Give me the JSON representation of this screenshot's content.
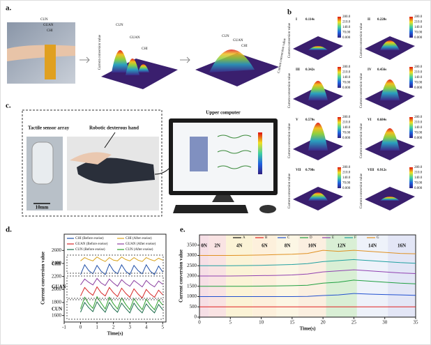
{
  "panels": {
    "a": "a.",
    "b": "b",
    "c": "c.",
    "d": "d.",
    "e": "e."
  },
  "panel_a": {
    "photo_labels": [
      "CUN",
      "GUAN",
      "CHI"
    ],
    "surface_labels": [
      "CUN",
      "GUAN",
      "CHI"
    ],
    "surface2_labels": [
      "CUN",
      "GUAN",
      "CHI"
    ],
    "axis_label": "Current conversion value"
  },
  "panel_b": {
    "frames": [
      {
        "index": "I",
        "time": "0.114s"
      },
      {
        "index": "II",
        "time": "0.228s"
      },
      {
        "index": "III",
        "time": "0.342s"
      },
      {
        "index": "IV",
        "time": "0.456s"
      },
      {
        "index": "V",
        "time": "0.570s"
      },
      {
        "index": "VI",
        "time": "0.684s"
      },
      {
        "index": "VII",
        "time": "0.798s"
      },
      {
        "index": "VIII",
        "time": "0.912s"
      }
    ],
    "colorbar_ticks": [
      "280.0",
      "210.0",
      "140.0",
      "70.00",
      "0.000"
    ],
    "axis_label": "Current conversion value"
  },
  "panel_c": {
    "sensor": "Tactile sensor array",
    "hand": "Robotic dexterous hand",
    "scale": "10mm",
    "computer": "Upper computer"
  },
  "chart_data": [
    {
      "type": "line",
      "xlabel": "Time(s)",
      "ylabel": "Current conversion value",
      "group_labels": [
        "CHI",
        "GUAN",
        "CUN"
      ],
      "x": [
        0,
        0.25,
        0.5,
        0.75,
        1,
        1.25,
        1.5,
        1.75,
        2,
        2.25,
        2.5,
        2.75,
        3,
        3.25,
        3.5,
        3.75,
        4,
        4.25,
        4.5,
        4.75,
        5
      ],
      "xlim": [
        -1,
        5.2
      ],
      "xticks": [
        -1,
        0,
        1,
        2,
        3,
        4,
        5
      ],
      "ylim": [
        1500,
        2850
      ],
      "yticks": [
        1600,
        1800,
        2000,
        2200,
        2400,
        2600
      ],
      "series": [
        {
          "name": "CHI (Before exeise)",
          "color": "#1f4fa8",
          "values": [
            2230,
            2380,
            2290,
            2240,
            2370,
            2280,
            2230,
            2390,
            2290,
            2240,
            2380,
            2280,
            2230,
            2370,
            2290,
            2240,
            2380,
            2280,
            2230,
            2360,
            2270
          ]
        },
        {
          "name": "CHI (After exeise)",
          "color": "#d9a21b",
          "values": [
            2440,
            2490,
            2460,
            2440,
            2500,
            2460,
            2430,
            2490,
            2450,
            2440,
            2500,
            2460,
            2440,
            2490,
            2450,
            2430,
            2490,
            2460,
            2440,
            2480,
            2450
          ]
        },
        {
          "name": "GUAN (Before exeise)",
          "color": "#d62728",
          "values": [
            1900,
            2030,
            1960,
            1910,
            2040,
            1950,
            1900,
            2030,
            1950,
            1890,
            2020,
            1940,
            1880,
            2010,
            1930,
            1870,
            2000,
            1930,
            1880,
            1990,
            1920
          ]
        },
        {
          "name": "GUAN (After exeise)",
          "color": "#8b3fa0",
          "values": [
            2070,
            2160,
            2110,
            2070,
            2170,
            2100,
            2060,
            2160,
            2100,
            2050,
            2150,
            2090,
            2050,
            2140,
            2090,
            2040,
            2140,
            2080,
            2040,
            2130,
            2080
          ]
        },
        {
          "name": "CUN (Before exeise)",
          "color": "#1b6b4a",
          "values": [
            1650,
            1800,
            1720,
            1660,
            1810,
            1720,
            1650,
            1800,
            1710,
            1650,
            1790,
            1710,
            1640,
            1790,
            1700,
            1640,
            1780,
            1700,
            1640,
            1770,
            1690
          ]
        },
        {
          "name": "CUN (After exeise)",
          "color": "#2ca02c",
          "values": [
            1700,
            1880,
            1780,
            1710,
            1890,
            1790,
            1700,
            1880,
            1780,
            1700,
            1870,
            1770,
            1690,
            1860,
            1770,
            1690,
            1850,
            1760,
            1690,
            1840,
            1760
          ]
        }
      ]
    },
    {
      "type": "line",
      "xlabel": "Time(s)",
      "ylabel": "Current conversion value",
      "x": [
        0,
        2.5,
        5,
        7.5,
        10,
        12.5,
        15,
        17.5,
        20,
        22.5,
        25,
        27.5,
        30,
        32.5,
        35
      ],
      "xlim": [
        0,
        35
      ],
      "xticks": [
        0,
        5,
        10,
        15,
        20,
        25,
        30,
        35
      ],
      "ylim": [
        0,
        4000
      ],
      "yticks": [
        0,
        500,
        1000,
        1500,
        2000,
        2500,
        3000,
        3500
      ],
      "bands": [
        {
          "label": "0N",
          "start": 0,
          "end": 1.5,
          "color": "#f6dfe6"
        },
        {
          "label": "2N",
          "start": 1.5,
          "end": 4.3,
          "color": "#f9e3e3"
        },
        {
          "label": "4N",
          "start": 4.3,
          "end": 8.6,
          "color": "#fbf3d6"
        },
        {
          "label": "6N",
          "start": 8.6,
          "end": 12.5,
          "color": "#fdf0dc"
        },
        {
          "label": "8N",
          "start": 12.5,
          "end": 16,
          "color": "#fcf6e4"
        },
        {
          "label": "10N",
          "start": 16,
          "end": 20.5,
          "color": "#fbefe0"
        },
        {
          "label": "12N",
          "start": 20.5,
          "end": 25.5,
          "color": "#d9efd5"
        },
        {
          "label": "14N",
          "start": 25.5,
          "end": 30.5,
          "color": "#eef2fa"
        },
        {
          "label": "16N",
          "start": 30.5,
          "end": 35,
          "color": "#e3e6f6"
        }
      ],
      "series": [
        {
          "name": "A",
          "color": "#111111",
          "values": [
            0,
            0,
            0,
            0,
            0,
            0,
            0,
            0,
            0,
            0,
            0,
            0,
            0,
            0,
            0
          ]
        },
        {
          "name": "B",
          "color": "#e02020",
          "values": [
            500,
            500,
            500,
            500,
            500,
            500,
            500,
            500,
            500,
            500,
            500,
            500,
            500,
            500,
            500
          ]
        },
        {
          "name": "C",
          "color": "#2050d0",
          "values": [
            1000,
            1000,
            1000,
            1000,
            1000,
            1000,
            1000,
            1010,
            1050,
            1080,
            1150,
            1120,
            1100,
            1080,
            1060
          ]
        },
        {
          "name": "D",
          "color": "#20a040",
          "values": [
            1500,
            1500,
            1500,
            1500,
            1510,
            1520,
            1530,
            1550,
            1650,
            1700,
            1800,
            1750,
            1700,
            1650,
            1620
          ]
        },
        {
          "name": "E",
          "color": "#9040b0",
          "values": [
            2000,
            2000,
            2000,
            2010,
            2020,
            2030,
            2050,
            2100,
            2200,
            2250,
            2300,
            2250,
            2200,
            2150,
            2120
          ]
        },
        {
          "name": "F",
          "color": "#20a0a0",
          "values": [
            2500,
            2500,
            2500,
            2510,
            2520,
            2540,
            2560,
            2600,
            2700,
            2750,
            2800,
            2750,
            2700,
            2650,
            2620
          ]
        },
        {
          "name": "G",
          "color": "#e09020",
          "values": [
            3000,
            3000,
            3000,
            3010,
            3020,
            3040,
            3060,
            3100,
            3250,
            3200,
            3250,
            3200,
            3150,
            3100,
            3080
          ]
        }
      ]
    }
  ]
}
